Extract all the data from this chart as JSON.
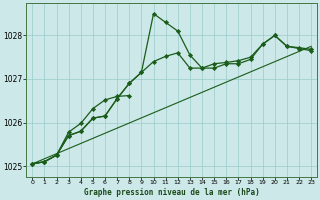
{
  "bg_color": "#cce8e8",
  "grid_color": "#99cccc",
  "line_color": "#1a5c1a",
  "marker_color": "#1a5c1a",
  "title": "Graphe pression niveau de la mer (hPa)",
  "xlim": [
    -0.5,
    23.5
  ],
  "ylim": [
    1024.75,
    1028.75
  ],
  "yticks": [
    1025,
    1026,
    1027,
    1028
  ],
  "xticks": [
    0,
    1,
    2,
    3,
    4,
    5,
    6,
    7,
    8,
    9,
    10,
    11,
    12,
    13,
    14,
    15,
    16,
    17,
    18,
    19,
    20,
    21,
    22,
    23
  ],
  "line1_x": [
    0,
    1,
    2,
    3,
    4,
    5,
    6,
    7,
    8,
    9,
    10,
    11,
    12,
    13,
    14,
    15,
    16,
    17,
    18,
    19,
    20,
    21,
    22,
    23
  ],
  "line1_y": [
    1025.05,
    1025.1,
    1025.25,
    1025.7,
    1025.8,
    1026.1,
    1026.15,
    1026.55,
    1026.9,
    1027.15,
    1028.5,
    1028.3,
    1028.1,
    1027.55,
    1027.25,
    1027.25,
    1027.35,
    1027.35,
    1027.45,
    1027.8,
    1028.0,
    1027.75,
    1027.7,
    1027.65
  ],
  "line2_x": [
    0,
    1,
    2,
    3,
    4,
    5,
    6,
    7,
    8
  ],
  "line2_y": [
    1025.05,
    1025.1,
    1025.25,
    1025.78,
    1025.98,
    1026.32,
    1026.52,
    1026.6,
    1026.62
  ],
  "line3_x": [
    0,
    1,
    2,
    3,
    4,
    5,
    6,
    7,
    8,
    9,
    10,
    11,
    12,
    13,
    14,
    15,
    16,
    17,
    18,
    19,
    20,
    21,
    22,
    23
  ],
  "line3_y": [
    1025.05,
    1025.1,
    1025.25,
    1025.7,
    1025.8,
    1026.1,
    1026.15,
    1026.55,
    1026.9,
    1027.15,
    1027.4,
    1027.52,
    1027.6,
    1027.25,
    1027.25,
    1027.35,
    1027.38,
    1027.42,
    1027.5,
    1027.8,
    1028.0,
    1027.75,
    1027.72,
    1027.68
  ],
  "trend_x": [
    0,
    23
  ],
  "trend_y": [
    1025.05,
    1027.75
  ]
}
